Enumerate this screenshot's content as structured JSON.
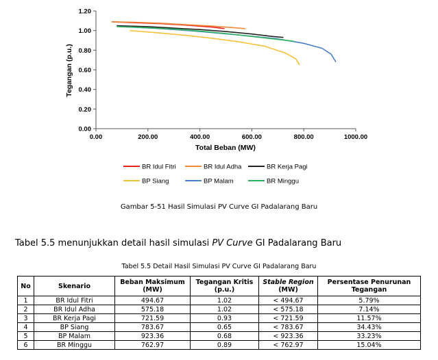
{
  "chart_data": {
    "type": "line",
    "xlabel": "Total Beban (MW)",
    "ylabel": "Tegangan (p.u.)",
    "xlim": [
      0,
      1000
    ],
    "ylim": [
      0,
      1.2
    ],
    "x_ticks": [
      "0.00",
      "200.00",
      "400.00",
      "600.00",
      "800.00",
      "1000.00"
    ],
    "y_ticks": [
      "0.00",
      "0.20",
      "0.40",
      "0.60",
      "0.80",
      "1.00",
      "1.20"
    ],
    "grid": false,
    "legend_position": "bottom",
    "series": [
      {
        "name": "BR Idul Fitri",
        "color": "#e8231f",
        "x": [
          60,
          150,
          250,
          350,
          450,
          494.67
        ],
        "y": [
          1.09,
          1.08,
          1.07,
          1.055,
          1.035,
          1.02
        ]
      },
      {
        "name": "BR Idul Adha",
        "color": "#f0883a",
        "x": [
          60,
          150,
          250,
          350,
          450,
          530,
          575.18
        ],
        "y": [
          1.09,
          1.085,
          1.075,
          1.06,
          1.045,
          1.03,
          1.02
        ]
      },
      {
        "name": "BR Kerja Pagi",
        "color": "#222222",
        "x": [
          80,
          200,
          300,
          400,
          500,
          600,
          680,
          721.59
        ],
        "y": [
          1.05,
          1.04,
          1.025,
          1.01,
          0.99,
          0.965,
          0.94,
          0.93
        ]
      },
      {
        "name": "BP Siang",
        "color": "#f5c13a",
        "x": [
          130,
          250,
          350,
          450,
          550,
          650,
          730,
          770,
          783.67
        ],
        "y": [
          1.0,
          0.975,
          0.95,
          0.92,
          0.885,
          0.84,
          0.77,
          0.71,
          0.65
        ]
      },
      {
        "name": "BP Malam",
        "color": "#4a7ecb",
        "x": [
          100,
          250,
          400,
          550,
          700,
          800,
          870,
          905,
          923.36
        ],
        "y": [
          1.04,
          1.02,
          0.99,
          0.955,
          0.915,
          0.87,
          0.82,
          0.76,
          0.68
        ]
      },
      {
        "name": "BR Minggu",
        "color": "#2eb35c",
        "x": [
          80,
          200,
          300,
          400,
          500,
          600,
          700,
          762.97
        ],
        "y": [
          1.04,
          1.03,
          1.015,
          0.995,
          0.97,
          0.94,
          0.91,
          0.89
        ]
      }
    ]
  },
  "figure_caption": "Gambar 5-51 Hasil Simulasi PV Curve GI Padalarang Baru",
  "paragraph": {
    "before": "Tabel 5.5 menunjukkan detail hasil simulasi ",
    "italic": "PV Curve",
    "after": " GI Padalarang Baru"
  },
  "table_caption": "Tabel 5.5 Detail Hasil Simulasi PV Curve GI Padalarang Baru",
  "table": {
    "headers": {
      "no": "No",
      "skenario": "Skenario",
      "beban": "Beban Maksimum (MW)",
      "tegangan": "Tegangan Kritis (p.u.)",
      "stable": "Stable Region",
      "stable_unit": "(MW)",
      "persentase": "Persentase Penurunan Tegangan"
    },
    "rows": [
      {
        "no": "1",
        "skenario": "BR Idul Fitri",
        "beban": "494.67",
        "tegangan": "1.02",
        "stable": "< 494.67",
        "persentase": "5.79%"
      },
      {
        "no": "2",
        "skenario": "BR Idul Adha",
        "beban": "575.18",
        "tegangan": "1.02",
        "stable": "< 575.18",
        "persentase": "7.14%"
      },
      {
        "no": "3",
        "skenario": "BR Kerja Pagi",
        "beban": "721.59",
        "tegangan": "0.93",
        "stable": "< 721.59",
        "persentase": "11.57%"
      },
      {
        "no": "4",
        "skenario": "BP Siang",
        "beban": "783.67",
        "tegangan": "0.65",
        "stable": "< 783.67",
        "persentase": "34.43%"
      },
      {
        "no": "5",
        "skenario": "BP Malam",
        "beban": "923.36",
        "tegangan": "0.68",
        "stable": "< 923.36",
        "persentase": "33.23%"
      },
      {
        "no": "6",
        "skenario": "BR Minggu",
        "beban": "762.97",
        "tegangan": "0.89",
        "stable": "< 762.97",
        "persentase": "15.04%"
      }
    ]
  }
}
